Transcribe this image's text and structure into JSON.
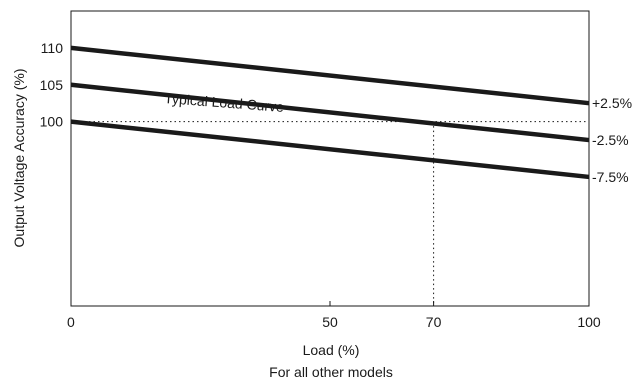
{
  "chart_data": {
    "type": "line",
    "title": "",
    "xlabel": "Load (%)",
    "ylabel": "Output Voltage Accuracy (%)",
    "caption": "For all other models",
    "xlim": [
      0,
      100
    ],
    "ylim": [
      75,
      115
    ],
    "grid": false,
    "x_ticks": [
      0,
      50,
      70,
      100
    ],
    "y_ticks": [
      100,
      105,
      110
    ],
    "series": [
      {
        "name": "+2.5%",
        "x": [
          0,
          100
        ],
        "y": [
          110,
          102.5
        ]
      },
      {
        "name": "-2.5%",
        "x": [
          0,
          100
        ],
        "y": [
          105,
          97.5
        ]
      },
      {
        "name": "-7.5%",
        "x": [
          0,
          100
        ],
        "y": [
          100,
          92.5
        ]
      }
    ],
    "annotations": [
      {
        "text": "Typical Load Curve"
      }
    ],
    "reference_lines": [
      {
        "orientation": "horizontal",
        "value": 100,
        "style": "dotted"
      },
      {
        "orientation": "vertical",
        "value": 70,
        "style": "dotted"
      }
    ],
    "colors": {
      "lines": "#1a1a1a",
      "axes": "#1a1a1a",
      "background": "#ffffff"
    }
  }
}
